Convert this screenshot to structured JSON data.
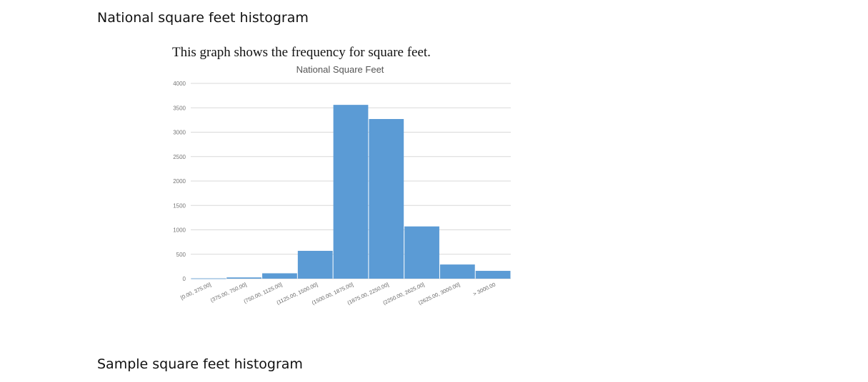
{
  "document": {
    "heading_national": "National square feet histogram",
    "caption": "This graph shows the frequency for square  feet.",
    "heading_sample": "Sample square feet histogram"
  },
  "colors": {
    "bar": "#5B9BD5",
    "grid": "#D9D9D9"
  },
  "chart_data": {
    "type": "bar",
    "title": "National Square Feet",
    "xlabel": "",
    "ylabel": "",
    "categories": [
      "[0.00, 375.00]",
      "(375.00, 750.00]",
      "(750.00, 1125.00]",
      "(1125.00, 1500.00]",
      "(1500.00, 1875.00]",
      "(1875.00, 2250.00]",
      "(2250.00, 2625.00]",
      "(2625.00, 3000.00]",
      "> 3000.00"
    ],
    "values": [
      5,
      25,
      110,
      570,
      3560,
      3270,
      1070,
      290,
      160
    ],
    "ylim": [
      0,
      4000
    ],
    "yticks": [
      "0",
      "500",
      "1000",
      "1500",
      "2000",
      "2500",
      "3000",
      "3500",
      "4000"
    ],
    "grid": true,
    "legend": "none"
  }
}
